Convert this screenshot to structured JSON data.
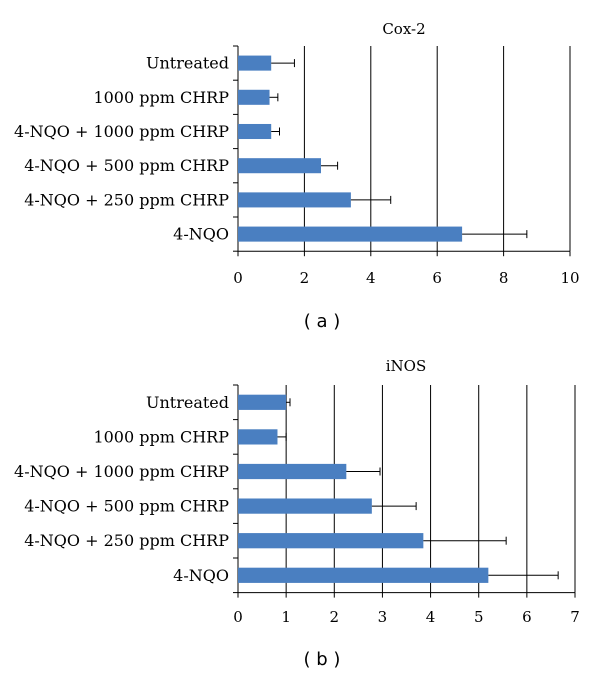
{
  "figure": {
    "panels": [
      {
        "caption": "( a )"
      },
      {
        "caption": "( b )"
      }
    ]
  },
  "chart_data": [
    {
      "type": "bar",
      "orientation": "horizontal",
      "title": "Cox-2",
      "xlabel": "",
      "ylabel": "",
      "categories": [
        "Untreated",
        "1000 ppm CHRP",
        "4-NQO + 1000 ppm CHRP",
        "4-NQO + 500 ppm CHRP",
        "4-NQO + 250 ppm CHRP",
        "4-NQO"
      ],
      "series": [
        {
          "values": [
            1.0,
            0.95,
            1.0,
            2.5,
            3.4,
            6.75
          ],
          "error": [
            0.7,
            0.25,
            0.25,
            0.5,
            1.2,
            1.95
          ]
        }
      ],
      "xlim": [
        0,
        10
      ],
      "xticks": [
        0,
        2,
        4,
        6,
        8,
        10
      ],
      "grid": "vertical",
      "legend": "none",
      "bar_color": "#4a7fc1"
    },
    {
      "type": "bar",
      "orientation": "horizontal",
      "title": "iNOS",
      "xlabel": "",
      "ylabel": "",
      "categories": [
        "Untreated",
        "1000 ppm CHRP",
        "4-NQO + 1000 ppm CHRP",
        "4-NQO + 500 ppm CHRP",
        "4-NQO + 250 ppm CHRP",
        "4-NQO"
      ],
      "series": [
        {
          "values": [
            1.0,
            0.82,
            2.25,
            2.78,
            3.85,
            5.2
          ],
          "error": [
            0.08,
            0.18,
            0.7,
            0.92,
            1.72,
            1.45
          ]
        }
      ],
      "xlim": [
        0,
        7
      ],
      "xticks": [
        0,
        1,
        2,
        3,
        4,
        5,
        6,
        7
      ],
      "grid": "vertical",
      "legend": "none",
      "bar_color": "#4a7fc1"
    }
  ]
}
